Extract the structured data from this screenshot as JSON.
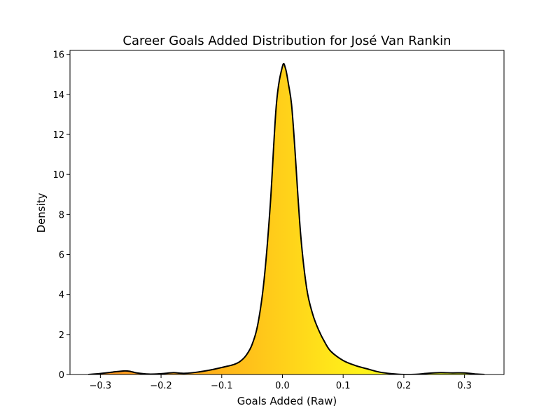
{
  "chart_data": {
    "type": "area",
    "title": "Career Goals Added Distribution for José Van Rankin",
    "xlabel": "Goals Added (Raw)",
    "ylabel": "Density",
    "xlim": [
      -0.35,
      0.365
    ],
    "ylim": [
      0,
      16.2
    ],
    "x_ticks": [
      -0.3,
      -0.2,
      -0.1,
      0.0,
      0.1,
      0.2,
      0.3
    ],
    "x_tick_labels": [
      "−0.3",
      "−0.2",
      "−0.1",
      "0.0",
      "0.1",
      "0.2",
      "0.3"
    ],
    "y_ticks": [
      0,
      2,
      4,
      6,
      8,
      10,
      12,
      14,
      16
    ],
    "y_tick_labels": [
      "0",
      "2",
      "4",
      "6",
      "8",
      "10",
      "12",
      "14",
      "16"
    ],
    "grid": false,
    "legend": "none",
    "fill_gradient": [
      "#f58a1f",
      "#ffb21a",
      "#fff21a",
      "#d9ff1a"
    ],
    "line_color": "#000000",
    "series": [
      {
        "x": [
          -0.32,
          -0.3,
          -0.28,
          -0.26,
          -0.25,
          -0.24,
          -0.22,
          -0.2,
          -0.18,
          -0.17,
          -0.16,
          -0.14,
          -0.12,
          -0.1,
          -0.09,
          -0.08,
          -0.07,
          -0.06,
          -0.05,
          -0.04,
          -0.03,
          -0.02,
          -0.01,
          0.0,
          0.005,
          0.01,
          0.015,
          0.02,
          0.03,
          0.04,
          0.05,
          0.06,
          0.07,
          0.08,
          0.1,
          0.12,
          0.14,
          0.16,
          0.18,
          0.2,
          0.22,
          0.24,
          0.26,
          0.28,
          0.3,
          0.32,
          0.333
        ],
        "values": [
          0.0,
          0.05,
          0.12,
          0.18,
          0.15,
          0.08,
          0.02,
          0.04,
          0.09,
          0.07,
          0.06,
          0.12,
          0.22,
          0.35,
          0.42,
          0.5,
          0.65,
          0.95,
          1.5,
          2.6,
          4.8,
          8.5,
          13.5,
          15.4,
          15.3,
          14.5,
          13.5,
          11.5,
          7.0,
          4.3,
          3.0,
          2.2,
          1.6,
          1.15,
          0.7,
          0.45,
          0.28,
          0.12,
          0.04,
          0.0,
          0.01,
          0.06,
          0.09,
          0.08,
          0.08,
          0.02,
          0.0
        ]
      }
    ]
  }
}
